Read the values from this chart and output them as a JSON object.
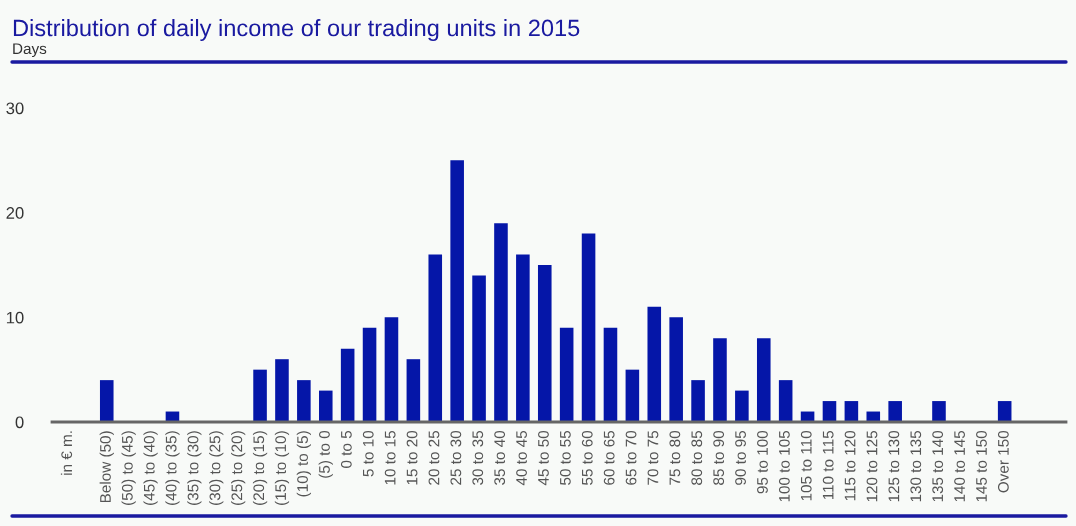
{
  "chart_data": {
    "type": "bar",
    "title": "Distribution of daily income of our trading units in 2015",
    "ylabel": "Days",
    "annotations": [
      "in € m."
    ],
    "categories": [
      "Below (50)",
      "(50) to (45)",
      "(45) to (40)",
      "(40) to (35)",
      "(35) to (30)",
      "(30) to (25)",
      "(25) to (20)",
      "(20) to (15)",
      "(15) to (10)",
      "(10) to (5)",
      "(5) to 0",
      "0 to 5",
      "5 to 10",
      "10 to 15",
      "15 to 20",
      "20 to 25",
      "25 to 30",
      "30 to 35",
      "35 to 40",
      "40 to 45",
      "45 to 50",
      "50 to 55",
      "55 to 60",
      "60 to 65",
      "65 to 70",
      "70 to 75",
      "75 to 80",
      "80 to 85",
      "85 to 90",
      "90 to 95",
      "95 to 100",
      "100 to 105",
      "105 to 110",
      "110 to 115",
      "115 to 120",
      "120 to 125",
      "125 to 130",
      "130 to 135",
      "135 to 140",
      "140 to 145",
      "145 to 150",
      "Over 150"
    ],
    "values": [
      4,
      0,
      0,
      1,
      0,
      0,
      0,
      5,
      6,
      4,
      3,
      7,
      9,
      10,
      6,
      16,
      25,
      14,
      19,
      16,
      15,
      9,
      18,
      9,
      5,
      11,
      10,
      4,
      8,
      3,
      8,
      4,
      1,
      2,
      2,
      1,
      2,
      0,
      2,
      0,
      0,
      2
    ],
    "color": "#0516a8",
    "ylim": [
      0,
      30
    ],
    "yticks": [
      0,
      10,
      20,
      30
    ],
    "grid": false,
    "legend": false
  }
}
